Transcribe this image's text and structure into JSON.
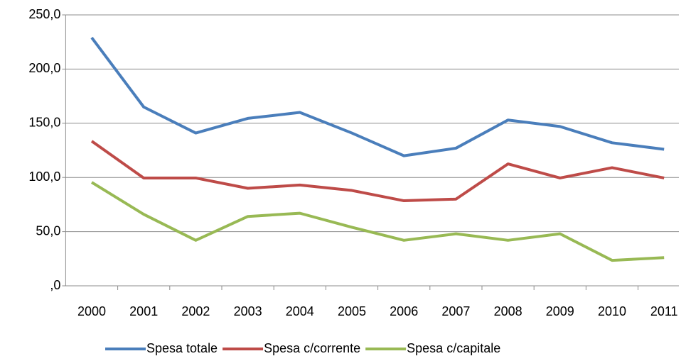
{
  "chart_data": {
    "type": "line",
    "categories": [
      "2000",
      "2001",
      "2002",
      "2003",
      "2004",
      "2005",
      "2006",
      "2007",
      "2008",
      "2009",
      "2010",
      "2011"
    ],
    "series": [
      {
        "name": "Spesa totale",
        "color": "#4a7ebb",
        "values": [
          229,
          165,
          141,
          154.5,
          160,
          141,
          120,
          127,
          153,
          147,
          132,
          126
        ]
      },
      {
        "name": "Spesa c/corrente",
        "color": "#be4b48",
        "values": [
          133.5,
          99.5,
          99.5,
          90,
          93,
          88,
          78.5,
          80,
          112.5,
          99.5,
          109,
          99.5
        ]
      },
      {
        "name": "Spesa c/capitale",
        "color": "#98b954",
        "values": [
          95.5,
          66,
          42,
          64,
          67,
          54,
          42,
          48,
          42,
          48,
          23.5,
          26
        ]
      }
    ],
    "ylim": [
      0,
      250
    ],
    "yticks": [
      {
        "value": 0,
        "label": ",0"
      },
      {
        "value": 50,
        "label": "50,0"
      },
      {
        "value": 100,
        "label": "100,0"
      },
      {
        "value": 150,
        "label": "150,0"
      },
      {
        "value": 200,
        "label": "200,0"
      },
      {
        "value": 250,
        "label": "250,0"
      }
    ],
    "grid": true,
    "legend": "bottom"
  }
}
